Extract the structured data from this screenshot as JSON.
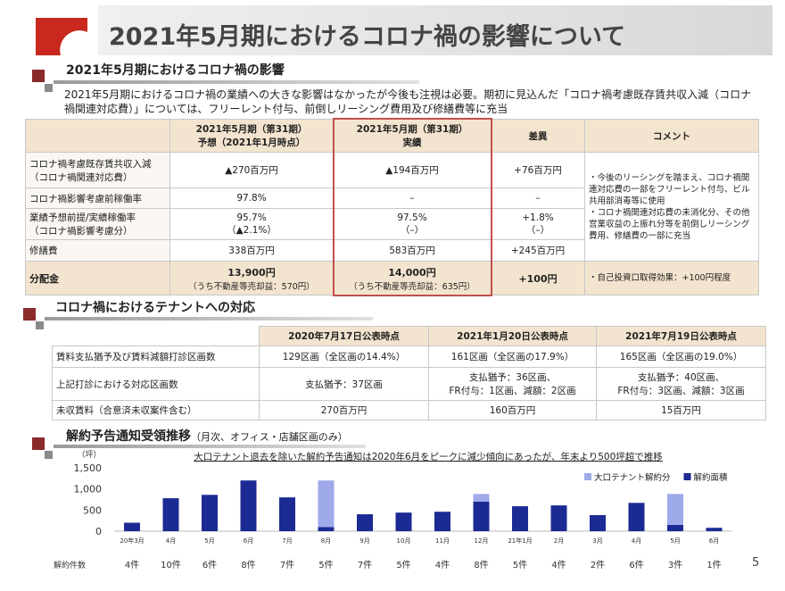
{
  "header": {
    "title": "2021年5月期におけるコロナ禍の影響について"
  },
  "page_number": "5",
  "section1": {
    "title": "2021年5月期におけるコロナ禍の影響",
    "text": "2021年5月期におけるコロナ禍の業績への大きな影響はなかったが今後も注視は必要。期初に見込んだ「コロナ禍考慮既存賃共収入減（コロナ禍関連対応費）」については、フリーレント付与、前倒しリーシング費用及び修繕費等に充当"
  },
  "table1": {
    "headers": [
      [
        "2021年5月期（第31期）",
        "予想（2021年1月時点）"
      ],
      [
        "2021年5月期（第31期）",
        "実績"
      ],
      "差異",
      "コメント"
    ],
    "rows": [
      [
        [
          "コロナ禍考慮既存賃共収入減",
          "（コロナ禍関連対応費）"
        ],
        "▲270百万円",
        "▲194百万円",
        "+76百万円"
      ],
      [
        "コロナ禍影響考慮前稼働率",
        "97.8%",
        "–",
        "–"
      ],
      [
        [
          "業績予想前提/実績稼働率",
          "（コロナ禍影響考慮分）"
        ],
        [
          "95.7%",
          "（▲2.1%）"
        ],
        [
          "97.5%",
          "（–）"
        ],
        [
          "+1.8%",
          "（–）"
        ]
      ],
      [
        "修繕費",
        "338百万円",
        "583百万円",
        "+245百万円"
      ],
      [
        "分配金",
        [
          "13,900円",
          "（うち不動産等売却益：570円）"
        ],
        [
          "14,000円",
          "（うち不動産等売却益：635円）"
        ],
        "+100円"
      ]
    ],
    "comments": [
      [
        "・今後のリーシングを踏まえ、コロナ禍関連対応費の一部をフリーレント付与、ビル共用部消毒等に使用",
        "・コロナ禍関連対応費の未消化分、その他営業収益の上振れ分等を前倒しリーシング費用、修繕費の一部に充当"
      ],
      [
        "・自己投資口取得効果：+100円程度"
      ]
    ]
  },
  "section2": {
    "title": "コロナ禍におけるテナントへの対応"
  },
  "table2": {
    "headers": [
      "2020年7月17日公表時点",
      "2021年1月20日公表時点",
      "2021年7月19日公表時点"
    ],
    "rows": [
      [
        "賃料支払猶予及び賃料減額打診区画数",
        "129区画（全区画の14.4%）",
        "161区画（全区画の17.9%）",
        "165区画（全区画の19.0%）"
      ],
      [
        "上記打診における対応区画数",
        "支払猶予：37区画",
        [
          "支払猶予：36区画、",
          "FR付与：1区画、減額：2区画"
        ],
        [
          "支払猶予：40区画、",
          "FR付与：3区画、減額：3区画"
        ]
      ],
      [
        "未収賃料（合意済未収案件含む）",
        "270百万円",
        "160百万円",
        "15百万円"
      ]
    ]
  },
  "section3": {
    "title": "解約予告通知受領推移",
    "subtitle": "（月次、オフィス・店舗区画のみ）"
  },
  "chart_data": {
    "type": "bar",
    "stacked": true,
    "title": "大口テナント退去を除いた解約予告通知は2020年6月をピークに減少傾向にあったが、年末より500坪超で推移",
    "y_label": "（坪）",
    "categories": [
      "20年3月",
      "4月",
      "5月",
      "6月",
      "7月",
      "8月",
      "9月",
      "10月",
      "11月",
      "12月",
      "21年1月",
      "2月",
      "3月",
      "4月",
      "5月",
      "6月"
    ],
    "series": [
      {
        "name": "大口テナント解約分",
        "color": "#9eaaea",
        "values": [
          null,
          null,
          null,
          null,
          null,
          1100,
          null,
          null,
          null,
          180,
          null,
          null,
          null,
          null,
          730,
          null
        ]
      },
      {
        "name": "解約面積",
        "color": "#1c2a94",
        "values": [
          200,
          780,
          860,
          1200,
          800,
          100,
          400,
          440,
          460,
          700,
          590,
          610,
          380,
          670,
          150,
          80
        ]
      }
    ],
    "ylim": [
      0,
      1500
    ],
    "yticks": [
      {
        "value": 1500,
        "label": "1,500"
      },
      {
        "value": 1000,
        "label": "1,000"
      },
      500,
      0
    ],
    "grid": false,
    "counts_label": "解約件数",
    "counts": [
      "4件",
      "10件",
      "6件",
      "8件",
      "7件",
      "5件",
      "7件",
      "5件",
      "4件",
      "8件",
      "5件",
      "4件",
      "2件",
      "6件",
      "3件",
      "1件"
    ]
  }
}
